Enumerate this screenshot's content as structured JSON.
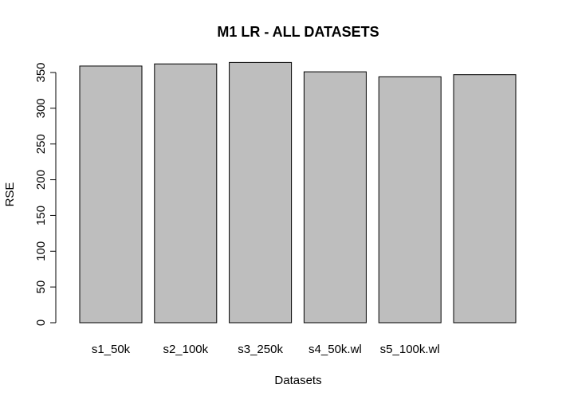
{
  "chart_data": {
    "type": "bar",
    "title": "M1 LR - ALL DATASETS",
    "xlabel": "Datasets",
    "ylabel": "RSE",
    "categories": [
      "s1_50k",
      "s2_100k",
      "s3_250k",
      "s4_50k.wl",
      "s5_100k.wl",
      ""
    ],
    "values": [
      359,
      362,
      364,
      351,
      344,
      347
    ],
    "ylim": [
      0,
      350
    ],
    "yticks": [
      0,
      50,
      100,
      150,
      200,
      250,
      300,
      350
    ],
    "grid": false,
    "legend": "none",
    "bar_color": "#bebebe",
    "bar_border_color": "#000000"
  }
}
